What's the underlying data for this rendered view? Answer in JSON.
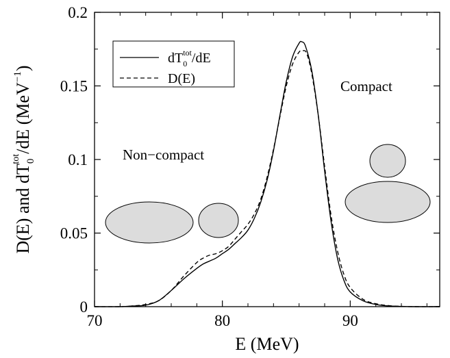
{
  "chart_data": {
    "type": "line",
    "xlabel": "E  (MeV)",
    "ylabel": {
      "part1": "D(E) and dT",
      "sub": "0",
      "sup": "tot",
      "part2": "/dE  (MeV",
      "unit_sup": "−1",
      "part3": ")"
    },
    "xlim": [
      70,
      97
    ],
    "ylim": [
      0,
      0.2
    ],
    "x_ticks": [
      70,
      80,
      90
    ],
    "y_ticks": [
      0,
      0.05,
      0.1,
      0.15,
      0.2
    ],
    "x_tick_labels": [
      "70",
      "80",
      "90"
    ],
    "y_tick_labels": [
      "0",
      "0.05",
      "0.1",
      "0.15",
      "0.2"
    ],
    "grid": false,
    "legend_placement": "top-left",
    "legend": [
      {
        "label_main": "dT",
        "label_sub": "0",
        "label_sup": "tot",
        "label_tail": "/dE",
        "style": "solid"
      },
      {
        "label_main": "D(E)",
        "label_sub": "",
        "label_sup": "",
        "label_tail": "",
        "style": "dashed"
      }
    ],
    "series": [
      {
        "style": "solid",
        "x": [
          70,
          72,
          73,
          74,
          75,
          76,
          77,
          78,
          78.5,
          79,
          79.5,
          80,
          80.5,
          81,
          81.5,
          82,
          82.5,
          83,
          83.5,
          84,
          84.5,
          85,
          85.5,
          86,
          86.2,
          86.5,
          87,
          87.5,
          88,
          88.5,
          89,
          89.5,
          90,
          91,
          92,
          93,
          94,
          95,
          97
        ],
        "y": [
          0,
          0,
          0.0005,
          0.001,
          0.004,
          0.011,
          0.019,
          0.026,
          0.029,
          0.031,
          0.033,
          0.036,
          0.039,
          0.043,
          0.047,
          0.052,
          0.06,
          0.071,
          0.086,
          0.106,
          0.13,
          0.153,
          0.17,
          0.179,
          0.18,
          0.177,
          0.16,
          0.13,
          0.092,
          0.058,
          0.033,
          0.018,
          0.01,
          0.004,
          0.0015,
          0.0005,
          0.0002,
          0,
          0
        ]
      },
      {
        "style": "dashed",
        "x": [
          70,
          72,
          73,
          74,
          75,
          76,
          77,
          78,
          78.5,
          79,
          79.5,
          80,
          80.5,
          81,
          81.5,
          82,
          82.5,
          83,
          83.5,
          84,
          84.5,
          85,
          85.5,
          86,
          86.3,
          86.6,
          87,
          87.5,
          88,
          88.5,
          89,
          89.5,
          90,
          91,
          92,
          93,
          94,
          95,
          97
        ],
        "y": [
          0,
          0,
          0.0005,
          0.0015,
          0.004,
          0.011,
          0.021,
          0.03,
          0.033,
          0.035,
          0.036,
          0.038,
          0.041,
          0.046,
          0.051,
          0.056,
          0.063,
          0.073,
          0.088,
          0.107,
          0.129,
          0.15,
          0.165,
          0.173,
          0.174,
          0.172,
          0.158,
          0.13,
          0.095,
          0.062,
          0.038,
          0.022,
          0.013,
          0.005,
          0.002,
          0.0007,
          0.0002,
          0,
          0
        ]
      }
    ],
    "annotations": {
      "left": "Non−compact",
      "right": "Compact"
    }
  },
  "colors": {
    "line": "#000000",
    "shape_fill": "#dcdcdc",
    "background": "#ffffff"
  }
}
